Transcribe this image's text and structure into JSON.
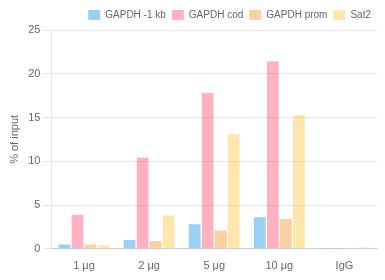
{
  "chart_data": {
    "type": "bar",
    "categories": [
      "1 μg",
      "2 μg",
      "5 μg",
      "10 μg",
      "IgG"
    ],
    "series": [
      {
        "name": "GAPDH -1 kb",
        "values": [
          0.5,
          1.0,
          2.8,
          3.6,
          0.08
        ]
      },
      {
        "name": "GAPDH cod",
        "values": [
          3.9,
          10.4,
          17.8,
          21.4,
          0.1
        ]
      },
      {
        "name": "GAPDH prom",
        "values": [
          0.5,
          0.9,
          2.1,
          3.4,
          0.05
        ]
      },
      {
        "name": "Sat2",
        "values": [
          0.4,
          3.8,
          13.1,
          15.3,
          0.15
        ]
      }
    ],
    "ylabel": "% of input",
    "ylim": [
      0,
      25
    ],
    "yticks": [
      0,
      5,
      10,
      15,
      20,
      25
    ],
    "grid": true,
    "legend": "upper right"
  }
}
